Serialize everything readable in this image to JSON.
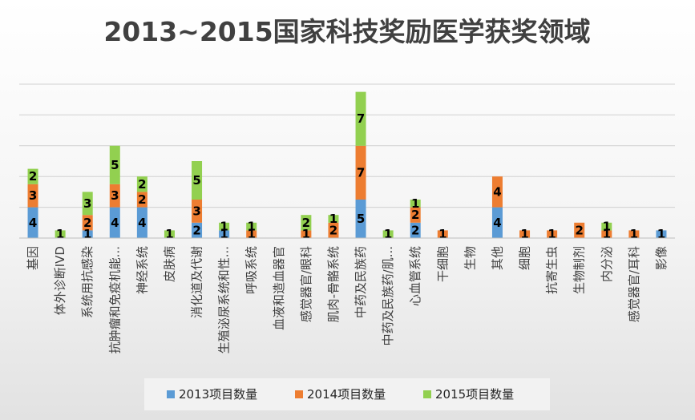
{
  "chart_data": {
    "type": "bar",
    "stacked": true,
    "title": "2013~2015国家科技奖励医学获奖领域",
    "xlabel": "",
    "ylabel": "",
    "ylim": [
      0,
      20
    ],
    "grid": true,
    "legend_position": "bottom",
    "categories": [
      "基因",
      "体外诊断IVD",
      "系统用抗感染",
      "抗肿瘤和免疫机能...",
      "神经系统",
      "皮肤病",
      "消化道及代谢",
      "生殖泌尿系统和性...",
      "呼吸系统",
      "血液和造血器官",
      "感觉器官/眼科",
      "肌肉-骨骼系统",
      "中药及民族药",
      "中药及民族药/肌...",
      "心血管系统",
      "干细胞",
      "生物",
      "其他",
      "细胞",
      "抗寄生虫",
      "生物制剂",
      "内分泌",
      "感觉器官/耳科",
      "影像"
    ],
    "series": [
      {
        "name": "2013项目数量",
        "color": "#5b9bd5",
        "values": [
          4,
          0,
          1,
          4,
          4,
          0,
          2,
          1,
          0,
          0,
          0,
          0,
          5,
          0,
          2,
          0,
          0,
          4,
          0,
          0,
          0,
          0,
          0,
          1
        ]
      },
      {
        "name": "2014项目数量",
        "color": "#ed7d31",
        "values": [
          3,
          0,
          2,
          3,
          2,
          0,
          3,
          0,
          1,
          0,
          1,
          2,
          7,
          0,
          2,
          1,
          0,
          4,
          1,
          1,
          2,
          1,
          1,
          0
        ]
      },
      {
        "name": "2015项目数量",
        "color": "#92d050",
        "values": [
          2,
          1,
          3,
          5,
          2,
          1,
          5,
          1,
          1,
          0,
          2,
          1,
          7,
          1,
          1,
          0,
          0,
          0,
          0,
          0,
          0,
          1,
          0,
          0
        ]
      }
    ]
  }
}
